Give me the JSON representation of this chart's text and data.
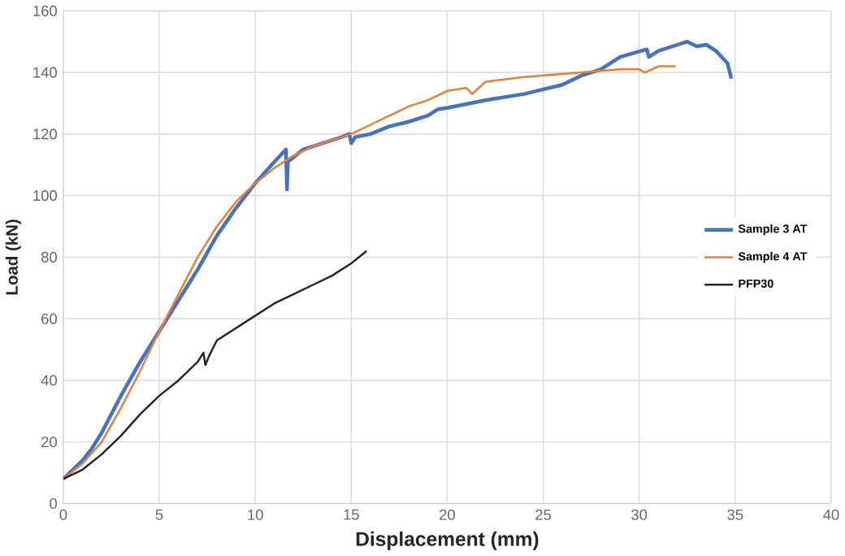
{
  "chart_data": {
    "type": "line",
    "xlabel": "Displacement (mm)",
    "ylabel": "Load (kN)",
    "xlim": [
      0,
      40
    ],
    "ylim": [
      0,
      160
    ],
    "xticks": [
      0,
      5,
      10,
      15,
      20,
      25,
      30,
      35,
      40
    ],
    "yticks": [
      0,
      20,
      40,
      60,
      80,
      100,
      120,
      140,
      160
    ],
    "grid": true,
    "legend": "right",
    "marker": "none",
    "line_style": "solid",
    "series": [
      {
        "name": "Sample 3 AT",
        "color": "#4472c4",
        "x": [
          0,
          1,
          1.5,
          2,
          3,
          4,
          5,
          6,
          7,
          8,
          9,
          10,
          11,
          11.6,
          11.65,
          11.7,
          12.5,
          13.5,
          14.5,
          14.9,
          15,
          15.2,
          16,
          17,
          18,
          19,
          19.5,
          20,
          22,
          24,
          26,
          27,
          28,
          29,
          30.4,
          30.5,
          31,
          32,
          32.5,
          33,
          33.5,
          34,
          34.6,
          34.8
        ],
        "values": [
          8,
          14,
          18,
          23,
          35,
          46,
          56,
          66,
          76,
          87,
          96,
          104,
          111,
          115,
          102,
          111,
          115,
          117,
          119,
          120,
          117,
          119,
          120,
          122.5,
          124,
          126,
          128,
          128.5,
          131,
          133,
          136,
          139,
          141,
          145,
          147.5,
          145,
          147,
          149,
          150,
          148.5,
          149,
          147,
          143,
          138
        ]
      },
      {
        "name": "Sample 4 AT",
        "color": "#ed7d31",
        "x": [
          0,
          1,
          2,
          3,
          4,
          5,
          6,
          7,
          8,
          9,
          10,
          11,
          12,
          13,
          14,
          15,
          16,
          17,
          18,
          19,
          20,
          21,
          21.3,
          22,
          24,
          26,
          28,
          29,
          30,
          30.3,
          31,
          31.9
        ],
        "values": [
          8,
          13,
          20,
          31,
          43,
          56,
          68,
          80,
          90,
          98,
          104,
          109,
          113,
          116,
          118,
          120,
          123,
          126,
          129,
          131,
          134,
          135,
          133,
          137,
          138.5,
          139.5,
          140.5,
          141,
          141,
          140,
          142,
          142
        ]
      },
      {
        "name": "PFP30",
        "color": "#262626",
        "x": [
          0,
          1,
          2,
          3,
          4,
          5,
          6,
          7,
          7.3,
          7.4,
          7.6,
          8,
          9,
          10,
          11,
          12,
          13,
          14,
          15,
          15.8
        ],
        "values": [
          8,
          11,
          16,
          22,
          29,
          35,
          40,
          46,
          49,
          45,
          48,
          53,
          57,
          61,
          65,
          68,
          71,
          74,
          78,
          82
        ]
      }
    ]
  }
}
